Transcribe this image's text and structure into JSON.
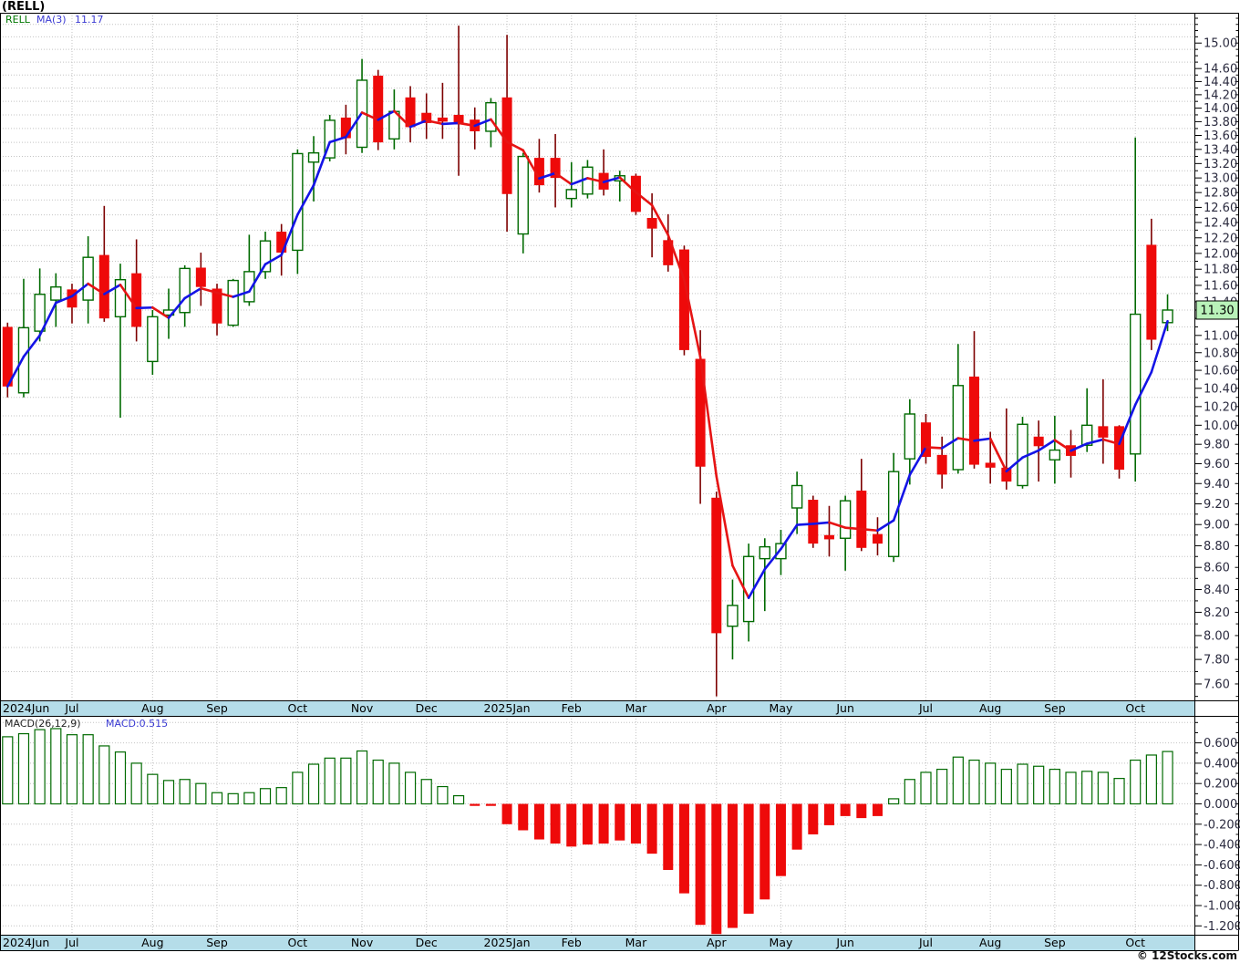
{
  "title": "(RELL)",
  "legend": {
    "symbol": "RELL",
    "ma_label": "MA(3)",
    "ma_value": "11.17"
  },
  "macd_legend": {
    "label": "MACD(26,12,9)",
    "value": "MACD:0.515"
  },
  "copyright": "© 12Stocks.com",
  "price_axis": {
    "labels": [
      "15.00",
      "14.60",
      "14.40",
      "14.20",
      "14.00",
      "13.80",
      "13.60",
      "13.40",
      "13.20",
      "13.00",
      "12.80",
      "12.60",
      "12.40",
      "12.20",
      "12.00",
      "11.80",
      "11.60",
      "11.40",
      "11.00",
      "10.80",
      "10.60",
      "10.40",
      "10.20",
      "10.00",
      "9.80",
      "9.60",
      "9.40",
      "9.20",
      "9.00",
      "8.80",
      "8.60",
      "8.40",
      "8.20",
      "8.00",
      "7.80",
      "7.60"
    ],
    "badge": {
      "text": "11.30",
      "value": 11.3
    }
  },
  "macd_axis": {
    "labels": [
      "0.600",
      "0.400",
      "0.200",
      "0.000",
      "-0.200",
      "-0.400",
      "-0.600",
      "-0.800",
      "-1.000",
      "-1.200"
    ]
  },
  "x_axis": {
    "months": [
      {
        "label": "2024Jun",
        "candle": 0,
        "edge": true
      },
      {
        "label": "Jul",
        "candle": 4
      },
      {
        "label": "Aug",
        "candle": 9
      },
      {
        "label": "Sep",
        "candle": 13
      },
      {
        "label": "Oct",
        "candle": 18
      },
      {
        "label": "Nov",
        "candle": 22
      },
      {
        "label": "Dec",
        "candle": 26
      },
      {
        "label": "2025Jan",
        "candle": 31
      },
      {
        "label": "Feb",
        "candle": 35
      },
      {
        "label": "Mar",
        "candle": 39
      },
      {
        "label": "Apr",
        "candle": 44
      },
      {
        "label": "May",
        "candle": 48
      },
      {
        "label": "Jun",
        "candle": 52
      },
      {
        "label": "Jul",
        "candle": 57
      },
      {
        "label": "Aug",
        "candle": 61
      },
      {
        "label": "Sep",
        "candle": 65
      },
      {
        "label": "Oct",
        "candle": 70
      }
    ]
  },
  "chart_data": {
    "type": "candlestick",
    "symbol": "RELL",
    "interval": "weekly",
    "title": "(RELL)",
    "overlay": "MA(3) two-color line (blue rising / red falling), last value 11.17",
    "lower_panel": "MACD(26,12,9) histogram, last value 0.515",
    "price_axis_range_edges": [
      7.47,
      15.49
    ],
    "macd_axis_range_edges": [
      -1.285,
      0.867
    ],
    "grid": "dotted, horizontal every 0.20 price / 0.200 macd, vertical at month starts",
    "ohlc": [
      [
        11.1,
        11.15,
        10.3,
        10.42
      ],
      [
        10.35,
        11.68,
        10.3,
        11.09
      ],
      [
        11.05,
        11.81,
        10.93,
        11.49
      ],
      [
        11.42,
        11.75,
        11.1,
        11.58
      ],
      [
        11.55,
        11.62,
        11.14,
        11.33
      ],
      [
        11.42,
        12.22,
        11.14,
        11.95
      ],
      [
        11.98,
        12.62,
        11.16,
        11.2
      ],
      [
        11.22,
        11.87,
        10.08,
        11.67
      ],
      [
        11.75,
        12.18,
        10.93,
        11.1
      ],
      [
        10.7,
        11.3,
        10.55,
        11.22
      ],
      [
        11.24,
        11.56,
        10.96,
        11.3
      ],
      [
        11.27,
        11.85,
        11.1,
        11.81
      ],
      [
        11.82,
        12.01,
        11.35,
        11.58
      ],
      [
        11.56,
        11.62,
        11.0,
        11.14
      ],
      [
        11.12,
        11.68,
        11.1,
        11.66
      ],
      [
        11.4,
        12.24,
        11.35,
        11.77
      ],
      [
        11.77,
        12.28,
        11.68,
        12.16
      ],
      [
        12.28,
        12.38,
        11.72,
        12.01
      ],
      [
        12.04,
        13.4,
        11.74,
        13.34
      ],
      [
        13.22,
        13.59,
        12.68,
        13.35
      ],
      [
        13.28,
        13.9,
        13.23,
        13.82
      ],
      [
        13.86,
        14.05,
        13.33,
        13.56
      ],
      [
        13.43,
        14.75,
        13.35,
        14.42
      ],
      [
        14.49,
        14.58,
        13.39,
        13.5
      ],
      [
        13.55,
        14.28,
        13.4,
        13.95
      ],
      [
        14.16,
        14.33,
        13.5,
        13.72
      ],
      [
        13.93,
        14.22,
        13.55,
        13.78
      ],
      [
        13.86,
        14.38,
        13.55,
        13.8
      ],
      [
        13.9,
        15.28,
        13.03,
        13.76
      ],
      [
        13.83,
        14.01,
        13.4,
        13.66
      ],
      [
        13.66,
        14.15,
        13.43,
        14.08
      ],
      [
        14.16,
        15.13,
        12.28,
        12.78
      ],
      [
        12.25,
        13.35,
        12.0,
        13.3
      ],
      [
        13.28,
        13.55,
        12.8,
        12.9
      ],
      [
        13.28,
        13.62,
        12.6,
        13.0
      ],
      [
        12.72,
        13.22,
        12.6,
        12.84
      ],
      [
        12.78,
        13.25,
        12.72,
        13.15
      ],
      [
        13.07,
        13.4,
        12.76,
        12.84
      ],
      [
        12.96,
        13.1,
        12.68,
        13.03
      ],
      [
        13.03,
        13.06,
        12.5,
        12.54
      ],
      [
        12.46,
        12.79,
        11.95,
        12.32
      ],
      [
        12.17,
        12.51,
        11.77,
        11.85
      ],
      [
        12.05,
        12.1,
        10.77,
        10.83
      ],
      [
        10.73,
        11.06,
        9.2,
        9.57
      ],
      [
        9.26,
        9.32,
        7.5,
        8.02
      ],
      [
        8.08,
        8.49,
        7.8,
        8.26
      ],
      [
        8.12,
        8.82,
        7.95,
        8.7
      ],
      [
        8.68,
        8.87,
        8.21,
        8.79
      ],
      [
        8.68,
        8.95,
        8.53,
        8.82
      ],
      [
        9.16,
        9.52,
        8.91,
        9.38
      ],
      [
        9.24,
        9.28,
        8.78,
        8.82
      ],
      [
        8.9,
        9.18,
        8.7,
        8.86
      ],
      [
        8.87,
        9.28,
        8.57,
        9.23
      ],
      [
        9.33,
        9.65,
        8.75,
        8.78
      ],
      [
        8.91,
        9.07,
        8.71,
        8.82
      ],
      [
        8.7,
        9.71,
        8.65,
        9.52
      ],
      [
        9.65,
        10.28,
        9.39,
        10.12
      ],
      [
        10.03,
        10.12,
        9.6,
        9.67
      ],
      [
        9.69,
        9.88,
        9.35,
        9.49
      ],
      [
        9.54,
        10.9,
        9.5,
        10.43
      ],
      [
        10.53,
        11.05,
        9.55,
        9.59
      ],
      [
        9.61,
        9.93,
        9.4,
        9.56
      ],
      [
        9.56,
        10.18,
        9.34,
        9.42
      ],
      [
        9.38,
        10.09,
        9.35,
        10.01
      ],
      [
        9.88,
        10.05,
        9.42,
        9.78
      ],
      [
        9.64,
        10.1,
        9.4,
        9.74
      ],
      [
        9.79,
        9.95,
        9.46,
        9.68
      ],
      [
        9.79,
        10.4,
        9.72,
        10.0
      ],
      [
        9.99,
        10.5,
        9.6,
        9.87
      ],
      [
        9.99,
        10.0,
        9.45,
        9.54
      ],
      [
        9.7,
        13.57,
        9.42,
        11.25
      ],
      [
        12.11,
        12.45,
        10.83,
        10.95
      ],
      [
        11.15,
        11.49,
        11.05,
        11.3
      ]
    ],
    "macd_histogram": [
      0.66,
      0.69,
      0.73,
      0.74,
      0.68,
      0.68,
      0.57,
      0.51,
      0.4,
      0.29,
      0.23,
      0.24,
      0.2,
      0.11,
      0.1,
      0.11,
      0.15,
      0.16,
      0.31,
      0.39,
      0.45,
      0.45,
      0.52,
      0.43,
      0.4,
      0.31,
      0.24,
      0.17,
      0.08,
      -0.02,
      -0.02,
      -0.2,
      -0.26,
      -0.35,
      -0.39,
      -0.42,
      -0.4,
      -0.39,
      -0.36,
      -0.39,
      -0.49,
      -0.65,
      -0.88,
      -1.19,
      -1.28,
      -1.22,
      -1.08,
      -0.94,
      -0.71,
      -0.45,
      -0.3,
      -0.21,
      -0.12,
      -0.14,
      -0.12,
      0.05,
      0.24,
      0.31,
      0.34,
      0.46,
      0.43,
      0.4,
      0.34,
      0.39,
      0.37,
      0.34,
      0.31,
      0.32,
      0.31,
      0.25,
      0.43,
      0.48,
      0.515
    ]
  },
  "colors": {
    "up_outline": "#006a00",
    "up_wick": "#006a00",
    "down_fill": "#ee0a0a",
    "down_wick": "#7d0000",
    "ma_up": "#1414e6",
    "ma_down": "#e61414",
    "band_bg": "#b5dde9",
    "grid": "#c4c4c4",
    "frame": "#000000",
    "axis_text": "#2b2b3f",
    "badge_bg": "#b9f2b9",
    "legend_symbol": "#007700",
    "legend_value": "#3a3ad2",
    "macd_label_color": "#222222",
    "band_text": "#000000"
  }
}
